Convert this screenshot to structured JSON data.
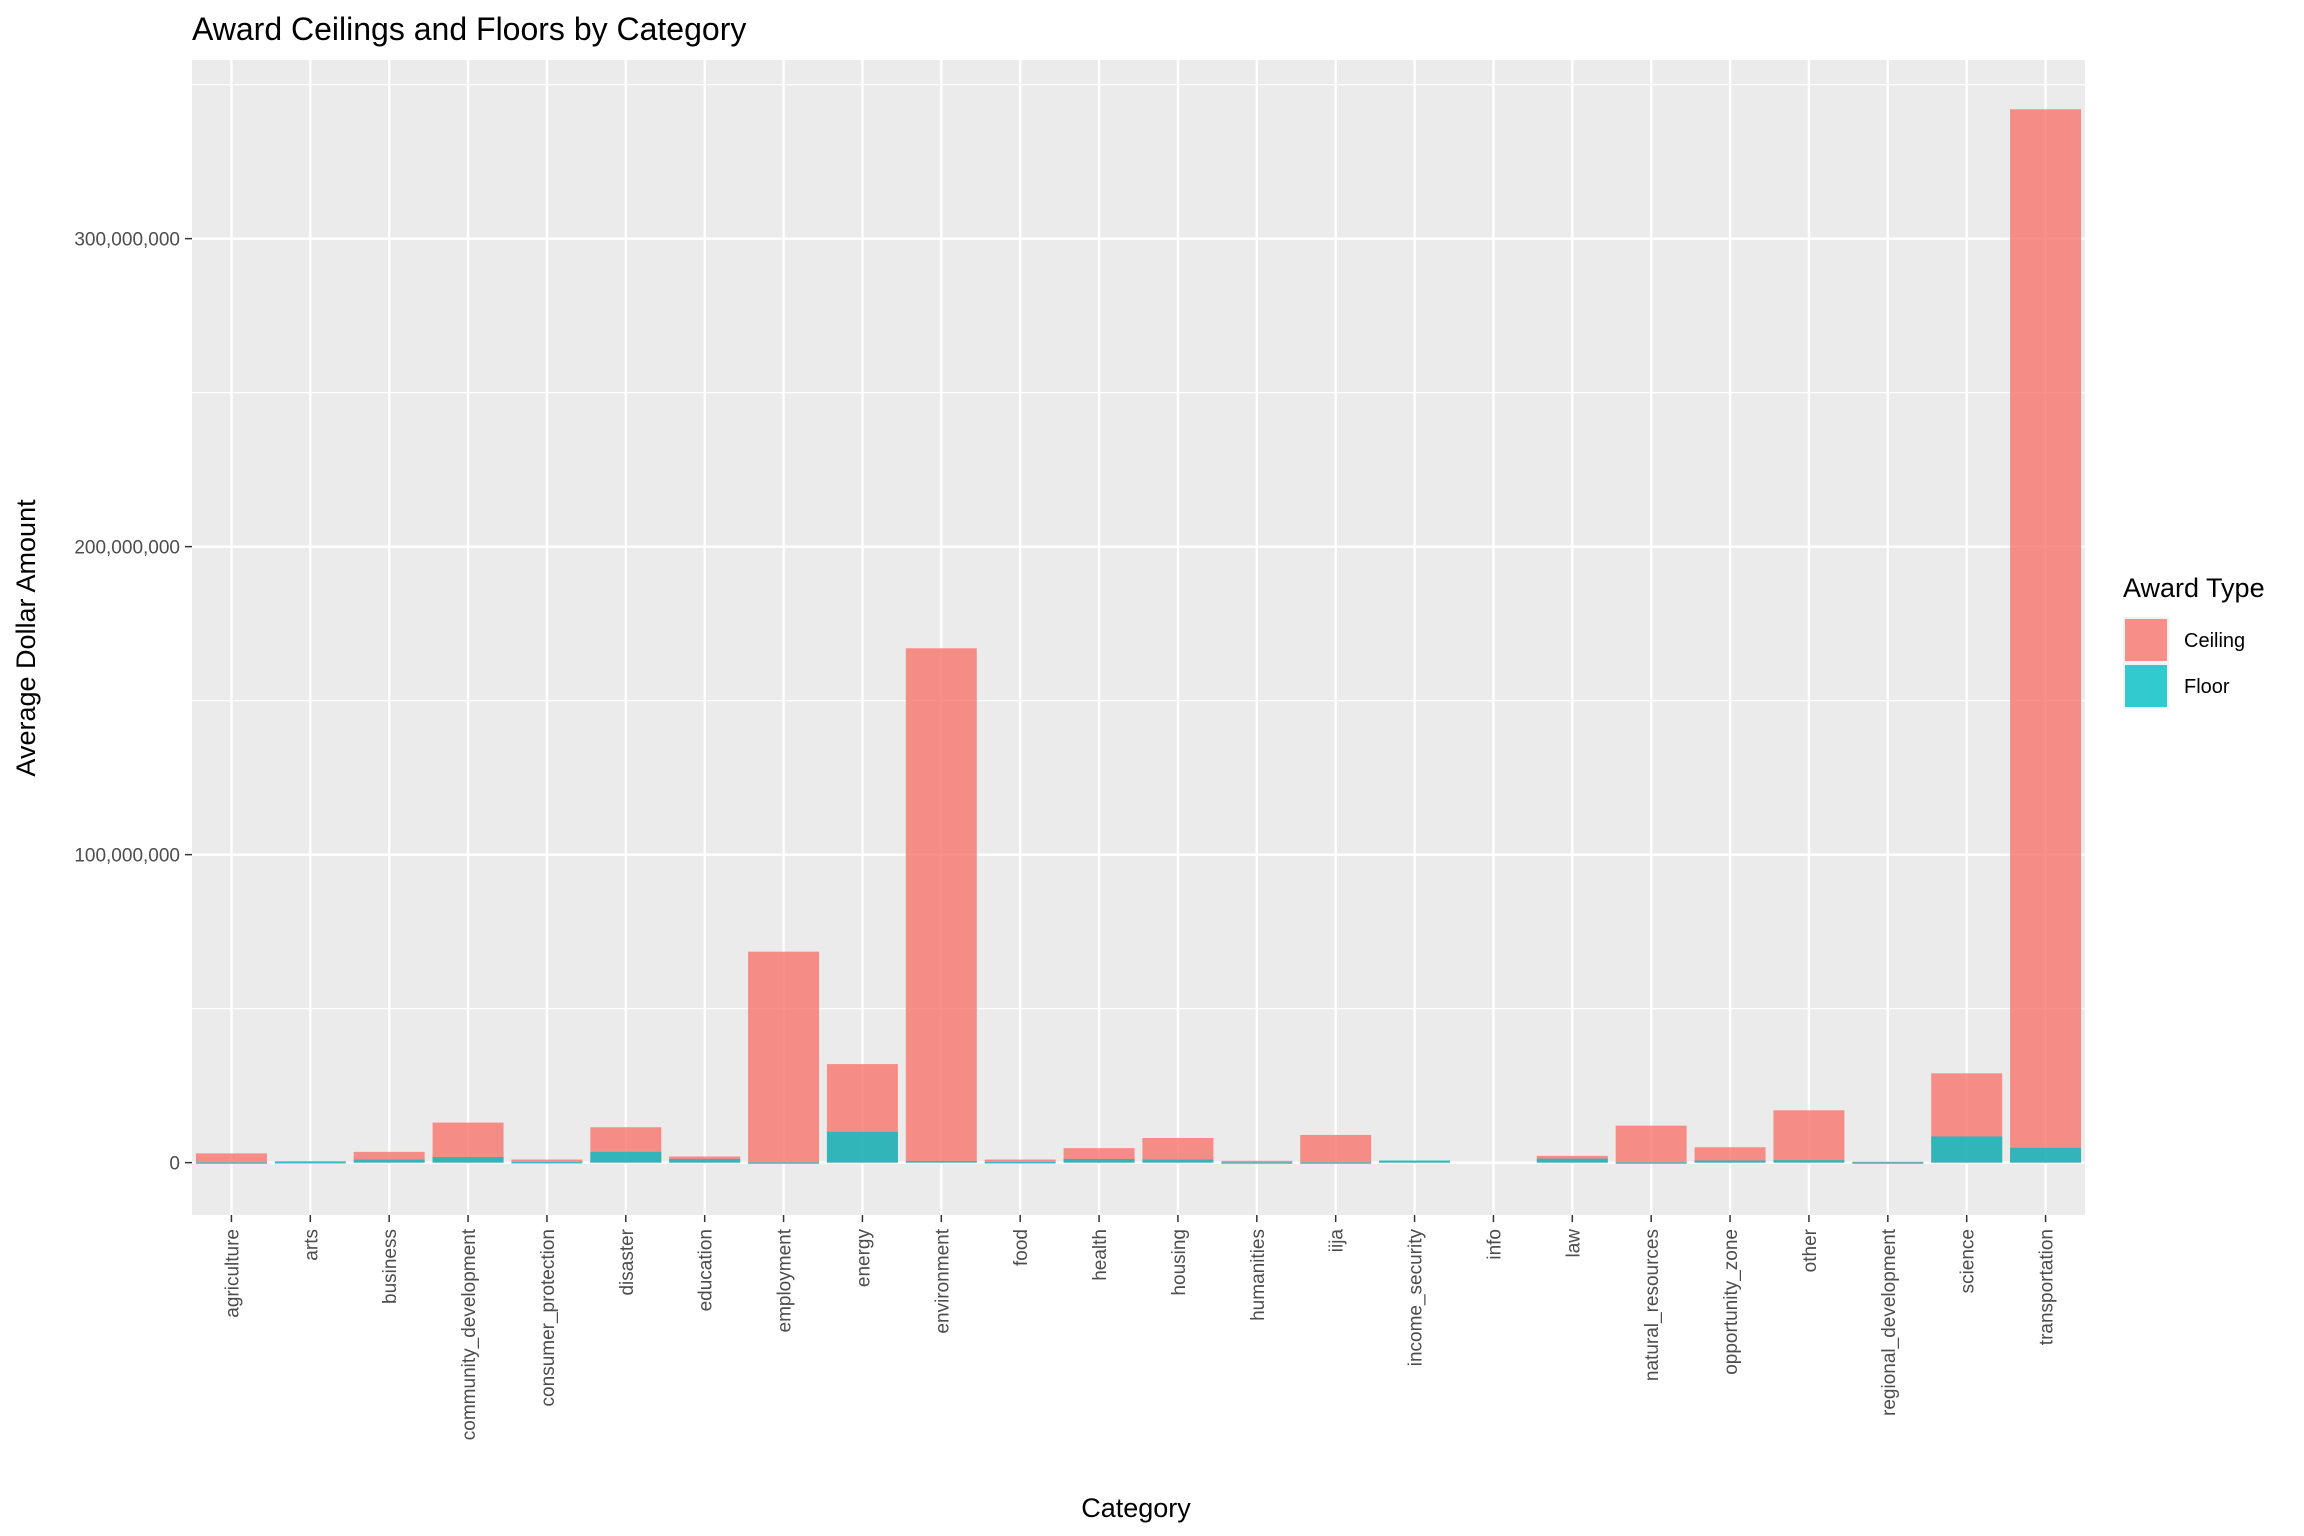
{
  "chart_data": {
    "type": "bar",
    "title": "Award Ceilings and Floors by Category",
    "xlabel": "Category",
    "ylabel": "Average Dollar Amount",
    "ylim": [
      -17000000,
      358000000
    ],
    "yticks": [
      0,
      100000000,
      200000000,
      300000000
    ],
    "ytick_labels": [
      "0",
      "100,000,000",
      "200,000,000",
      "300,000,000"
    ],
    "grid": true,
    "overlapping_bars": true,
    "categories": [
      "agriculture",
      "arts",
      "business",
      "community_development",
      "consumer_protection",
      "disaster",
      "education",
      "employment",
      "energy",
      "environment",
      "food",
      "health",
      "housing",
      "humanities",
      "iija",
      "income_security",
      "info",
      "law",
      "natural_resources",
      "opportunity_zone",
      "other",
      "regional_development",
      "science",
      "transportation"
    ],
    "legend": {
      "title": "Award Type",
      "position": "right"
    },
    "series": [
      {
        "name": "Ceiling",
        "color": "#F8766D",
        "values": [
          3000000,
          500000,
          3500000,
          13000000,
          1000000,
          11500000,
          2000000,
          68500000,
          32000000,
          167000000,
          1000000,
          4700000,
          8000000,
          600000,
          9000000,
          500000,
          0,
          2200000,
          12000000,
          5000000,
          17000000,
          300000,
          29000000,
          342000000
        ]
      },
      {
        "name": "Floor",
        "color": "#00BFC4",
        "values": [
          100000,
          200000,
          1000000,
          1800000,
          200000,
          3500000,
          1200000,
          100000,
          10000000,
          500000,
          200000,
          1200000,
          1000000,
          100000,
          100000,
          700000,
          0,
          1300000,
          100000,
          700000,
          800000,
          100000,
          8500000,
          4800000
        ]
      }
    ]
  }
}
